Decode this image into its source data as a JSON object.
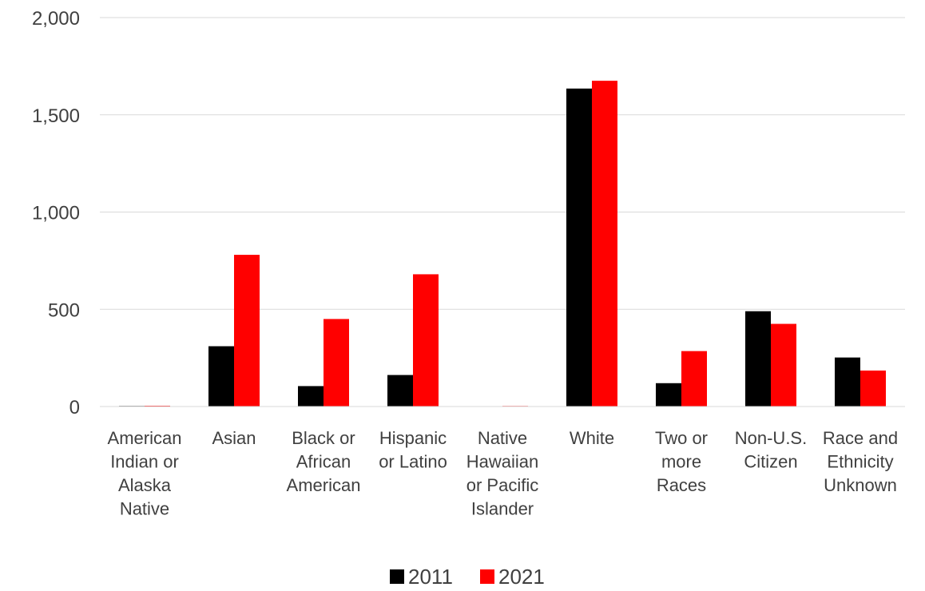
{
  "chart_data": {
    "type": "bar",
    "title": "",
    "xlabel": "",
    "ylabel": "",
    "categories": [
      "American Indian or Alaska Native",
      "Asian",
      "Black or African American",
      "Hispanic or Latino",
      "Native Hawaiian or Pacific Islander",
      "White",
      "Two or more Races",
      "Non-U.S. Citizen",
      "Race and Ethnicity Unknown"
    ],
    "category_label_lines": [
      [
        "American",
        "Indian or",
        "Alaska",
        "Native"
      ],
      [
        "Asian"
      ],
      [
        "Black or",
        "African",
        "American"
      ],
      [
        "Hispanic",
        "or Latino"
      ],
      [
        "Native",
        "Hawaiian",
        "or Pacific",
        "Islander"
      ],
      [
        "White"
      ],
      [
        "Two or",
        "more",
        "Races"
      ],
      [
        "Non-U.S.",
        "Citizen"
      ],
      [
        "Race and",
        "Ethnicity",
        "Unknown"
      ]
    ],
    "series": [
      {
        "name": "2011",
        "color": "#000000",
        "values": [
          3,
          310,
          105,
          162,
          2,
          1635,
          120,
          490,
          252
        ]
      },
      {
        "name": "2021",
        "color": "#ff0000",
        "values": [
          4,
          780,
          450,
          680,
          3,
          1675,
          285,
          425,
          185
        ]
      }
    ],
    "ylim": [
      0,
      2000
    ],
    "yticks": [
      0,
      500,
      1000,
      1500,
      2000
    ],
    "ytick_labels": [
      "0",
      "500",
      "1,000",
      "1,500",
      "2,000"
    ],
    "grid": true,
    "legend_position": "bottom"
  }
}
